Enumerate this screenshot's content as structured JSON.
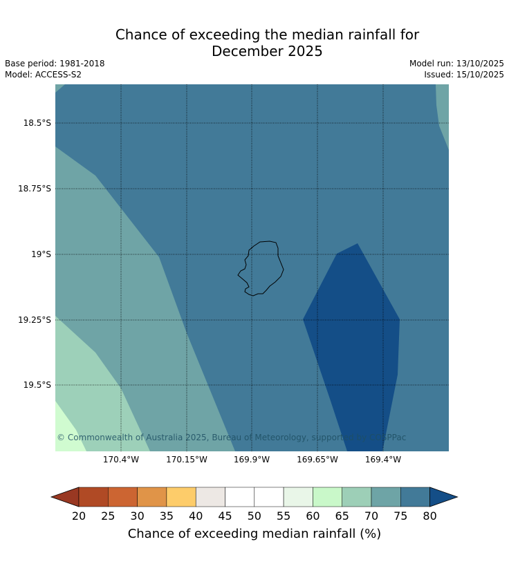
{
  "title_line1": "Chance of exceeding the median rainfall for",
  "title_line2": "December 2025",
  "base_period": "Base period: 1981-2018",
  "model": "Model: ACCESS-S2",
  "model_run": "Model run: 13/10/2025",
  "issued": "Issued: 15/10/2025",
  "lat_labels": [
    "18.5°S",
    "18.75°S",
    "19°S",
    "19.25°S",
    "19.5°S"
  ],
  "lon_labels": [
    "170.4°W",
    "170.15°W",
    "169.9°W",
    "169.65°W",
    "169.4°W"
  ],
  "copyright": "© Commonwealth of Australia 2025, Bureau of Meteorology, supported by COSPPac",
  "colorbar": {
    "ticks": [
      "20",
      "25",
      "30",
      "35",
      "40",
      "45",
      "50",
      "55",
      "60",
      "65",
      "70",
      "75",
      "80"
    ],
    "label": "Chance of exceeding median rainfall (%)",
    "colors": [
      "#b04a25",
      "#cc6532",
      "#e09448",
      "#fdcc6a",
      "#ede8e4",
      "#ffffff",
      "#ffffff",
      "#e9f6e8",
      "#c9f8c9",
      "#9dcfb7",
      "#6ea4a6",
      "#427a98"
    ],
    "under_color": "#993822",
    "over_color": "#144e87"
  },
  "map_colors": {
    "band_55_60": "#d0fbd0",
    "band_65_70": "#9dd0b9",
    "band_70_75": "#6fa4a6",
    "band_75_80": "#427a98",
    "band_over_80": "#144e87",
    "coastline": "#000000"
  },
  "island_name_icon": "niue-island-outline"
}
